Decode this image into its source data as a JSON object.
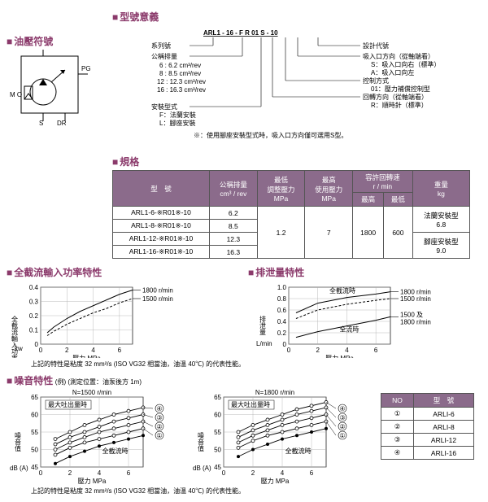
{
  "sections": {
    "hydraulic_symbol": "油壓符號",
    "model_meaning": "型號意義",
    "spec": "規格",
    "full_cutoff": "全截流輸入功率特性",
    "drain": "排泄量特性",
    "noise": "噪音特性",
    "noise_paren": "(例) (測定位置：油泵後方 1m)"
  },
  "model_code": {
    "code": "ARL1 - 16 - F R 01 S - 10",
    "series": "系列號",
    "displacement": "公稱排量",
    "displacement_vals": [
      "6 : 6.2 cm³/rev",
      "8 : 8.5 cm³/rev",
      "12 : 12.3 cm³/rev",
      "16 : 16.3 cm³/rev"
    ],
    "mounting": "安裝型式",
    "mounting_vals": [
      "F：法蘭安裝",
      "L：腳座安裝"
    ],
    "design": "設計代號",
    "suction": "吸入口方向（從軸端看）",
    "suction_vals": [
      "S：吸入口向右（標準）",
      "A：吸入口向左"
    ],
    "control": "控制方式",
    "control_vals": [
      "01：壓力補償控制型"
    ],
    "rotation": "回轉方向（從軸端看）",
    "rotation_vals": [
      "R：順時針（標準）"
    ],
    "note": "※：使用腳座安裝型式時，吸入口方向僅可選用S型。"
  },
  "symbol_labels": {
    "PG": "PG",
    "MO": "M O",
    "S": "S",
    "DR": "DR"
  },
  "spec_table": {
    "headers": [
      "型　號",
      "公稱排量\ncm³ / rev",
      "最低\n調整壓力\nMPa",
      "最高\n使用壓力\nMPa",
      "容許回轉速\nr / min",
      "重量\nkg"
    ],
    "sub_headers": [
      "最高",
      "最低"
    ],
    "rows": [
      {
        "model": "ARL1-6-※R01※-10",
        "disp": "6.2"
      },
      {
        "model": "ARL1-8-※R01※-10",
        "disp": "8.5"
      },
      {
        "model": "ARL1-12-※R01※-10",
        "disp": "12.3"
      },
      {
        "model": "ARL1-16-※R01※-10",
        "disp": "16.3"
      }
    ],
    "shared": {
      "min_p": "1.2",
      "max_p": "7",
      "rpm_max": "1800",
      "rpm_min": "600"
    },
    "weight": [
      {
        "label": "法蘭安裝型",
        "val": "6.8"
      },
      {
        "label": "腳座安裝型",
        "val": "9.0"
      }
    ]
  },
  "chart_common": {
    "xlabel": "壓力 MPa",
    "xticks": [
      0,
      2,
      4,
      6
    ],
    "footnote": "上記的特性是粘度 32 mm²/s (ISO VG32 相當油，油溫 40℃) 的代表性能。"
  },
  "full_cutoff_chart": {
    "ylabel": "全截流輸入功率 kw",
    "yticks": [
      "0",
      "0.1",
      "0.2",
      "0.3",
      "0.4"
    ],
    "legends": [
      "1800 r/min",
      "1500 r/min"
    ],
    "series": {
      "1800": [
        [
          0.5,
          0.08
        ],
        [
          1,
          0.12
        ],
        [
          2,
          0.18
        ],
        [
          3,
          0.23
        ],
        [
          4,
          0.27
        ],
        [
          5,
          0.31
        ],
        [
          6,
          0.35
        ],
        [
          7,
          0.38
        ]
      ],
      "1500": [
        [
          0.5,
          0.06
        ],
        [
          1,
          0.09
        ],
        [
          2,
          0.14
        ],
        [
          3,
          0.18
        ],
        [
          4,
          0.22
        ],
        [
          5,
          0.25
        ],
        [
          6,
          0.29
        ],
        [
          7,
          0.32
        ]
      ]
    },
    "colors": {
      "line": "#000",
      "dash": "#000"
    }
  },
  "drain_chart": {
    "ylabel": "排泄量 L/min",
    "yticks": [
      "0",
      "0.2",
      "0.4",
      "0.6",
      "0.8",
      "1.0"
    ],
    "labels": {
      "cutoff": "全截流時",
      "full": "全流時"
    },
    "note_right": [
      "1800 r/min",
      "1500 r/min",
      "1500 及",
      "1800 r/min"
    ],
    "series": {
      "cutoff1800": [
        [
          0.5,
          0.55
        ],
        [
          2,
          0.72
        ],
        [
          4,
          0.82
        ],
        [
          6,
          0.88
        ],
        [
          7,
          0.92
        ]
      ],
      "cutoff1500": [
        [
          0.5,
          0.45
        ],
        [
          2,
          0.6
        ],
        [
          4,
          0.7
        ],
        [
          6,
          0.77
        ],
        [
          7,
          0.8
        ]
      ],
      "full": [
        [
          0.5,
          0.12
        ],
        [
          2,
          0.22
        ],
        [
          4,
          0.32
        ],
        [
          6,
          0.42
        ],
        [
          7,
          0.48
        ]
      ]
    }
  },
  "noise_charts": {
    "ylabel": "噪音值 dB (A)",
    "yticks": [
      45,
      50,
      55,
      60,
      65
    ],
    "titles": [
      "N=1500 r/min",
      "N=1800 r/min"
    ],
    "max_label": "最大吐出量時",
    "cutoff_label": "全截流時",
    "legend_ids": [
      "④",
      "③",
      "②",
      "①"
    ],
    "series_1500": {
      "s4": [
        [
          1,
          53
        ],
        [
          2,
          55
        ],
        [
          3,
          57
        ],
        [
          4,
          58.5
        ],
        [
          5,
          60
        ],
        [
          6,
          61
        ],
        [
          7,
          62
        ]
      ],
      "s3": [
        [
          1,
          51.5
        ],
        [
          2,
          53.5
        ],
        [
          3,
          55
        ],
        [
          4,
          56.5
        ],
        [
          5,
          58
        ],
        [
          6,
          59
        ],
        [
          7,
          60
        ]
      ],
      "s2": [
        [
          1,
          50
        ],
        [
          2,
          52
        ],
        [
          3,
          53.5
        ],
        [
          4,
          55
        ],
        [
          5,
          56
        ],
        [
          6,
          57
        ],
        [
          7,
          58
        ]
      ],
      "s1": [
        [
          1,
          48.5
        ],
        [
          2,
          50.5
        ],
        [
          3,
          52
        ],
        [
          4,
          53
        ],
        [
          5,
          54
        ],
        [
          6,
          55
        ],
        [
          7,
          56
        ]
      ],
      "cutoff": [
        [
          1,
          46
        ],
        [
          2,
          48
        ],
        [
          3,
          49.5
        ],
        [
          4,
          51
        ],
        [
          5,
          52
        ],
        [
          6,
          53
        ],
        [
          7,
          54
        ]
      ]
    },
    "series_1800": {
      "s4": [
        [
          1,
          55
        ],
        [
          2,
          57
        ],
        [
          3,
          58.5
        ],
        [
          4,
          60
        ],
        [
          5,
          61.5
        ],
        [
          6,
          62.5
        ],
        [
          7,
          63.5
        ]
      ],
      "s3": [
        [
          1,
          53.5
        ],
        [
          2,
          55.5
        ],
        [
          3,
          57
        ],
        [
          4,
          58.5
        ],
        [
          5,
          60
        ],
        [
          6,
          61
        ],
        [
          7,
          62
        ]
      ],
      "s2": [
        [
          1,
          52
        ],
        [
          2,
          54
        ],
        [
          3,
          55.5
        ],
        [
          4,
          57
        ],
        [
          5,
          58
        ],
        [
          6,
          59
        ],
        [
          7,
          60
        ]
      ],
      "s1": [
        [
          1,
          50.5
        ],
        [
          2,
          52.5
        ],
        [
          3,
          54
        ],
        [
          4,
          55
        ],
        [
          5,
          56
        ],
        [
          6,
          57
        ],
        [
          7,
          58
        ]
      ],
      "cutoff": [
        [
          1,
          48
        ],
        [
          2,
          50
        ],
        [
          3,
          51.5
        ],
        [
          4,
          53
        ],
        [
          5,
          54
        ],
        [
          6,
          55
        ],
        [
          7,
          56
        ]
      ]
    }
  },
  "model_ref": {
    "headers": [
      "NO",
      "型　號"
    ],
    "rows": [
      [
        "①",
        "ARLI-6"
      ],
      [
        "②",
        "ARLI-8"
      ],
      [
        "③",
        "ARLI-12"
      ],
      [
        "④",
        "ARLI-16"
      ]
    ]
  }
}
